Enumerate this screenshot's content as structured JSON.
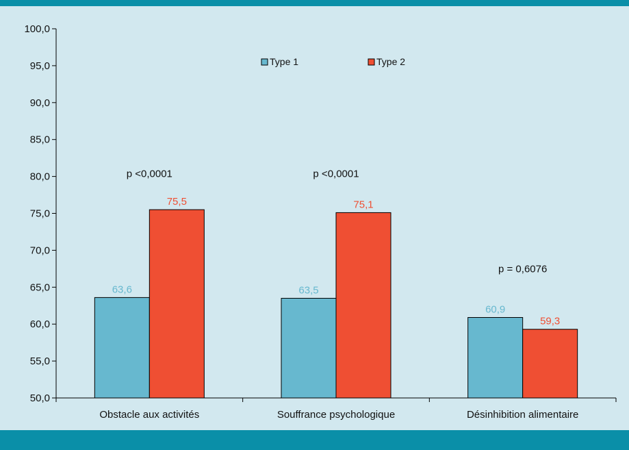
{
  "theme": {
    "band_color": "#0a8fa8",
    "background": "#d2e8ef",
    "axis_color": "#000000"
  },
  "chart_data": {
    "type": "bar",
    "categories": [
      "Obstacle aux activités",
      "Souffrance psychologique",
      "Désinhibition alimentaire"
    ],
    "series": [
      {
        "name": "Type 1",
        "values": [
          63.6,
          63.5,
          60.9
        ],
        "labels": [
          "63,6",
          "63,5",
          "60,9"
        ],
        "color": "#67b8cf"
      },
      {
        "name": "Type 2",
        "values": [
          75.5,
          75.1,
          59.3
        ],
        "labels": [
          "75,5",
          "75,1",
          "59,3"
        ],
        "color": "#ef4f33"
      }
    ],
    "ylim": [
      50,
      100
    ],
    "yticks": [
      50,
      55,
      60,
      65,
      70,
      75,
      80,
      85,
      90,
      95,
      100
    ],
    "ytick_labels": [
      "50,0",
      "55,0",
      "60,0",
      "65,0",
      "70,0",
      "75,0",
      "80,0",
      "85,0",
      "90,0",
      "95,0",
      "100,0"
    ],
    "annotations": [
      {
        "category": 0,
        "value": 79.9,
        "text": "p <0,0001"
      },
      {
        "category": 1,
        "value": 79.9,
        "text": "p <0,0001"
      },
      {
        "category": 2,
        "value": 67.0,
        "text": "p = 0,6076"
      }
    ],
    "legend_position": "top-center",
    "grid": false,
    "xlabel": "",
    "ylabel": "",
    "title": ""
  }
}
